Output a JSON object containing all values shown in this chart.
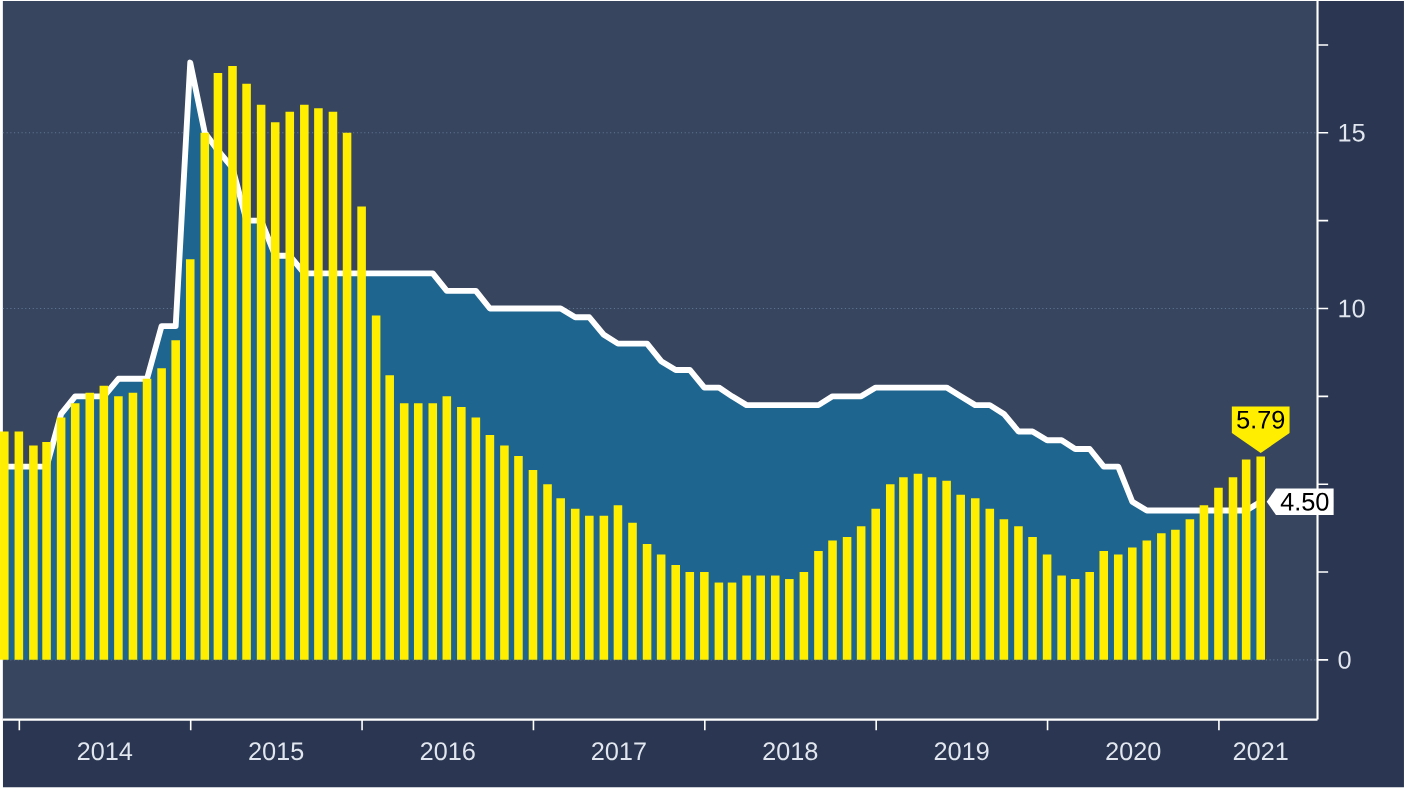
{
  "chart_data": {
    "type": "bar",
    "x": [
      "2013-11-30",
      "2013-12-31",
      "2014-01-31",
      "2014-02-28",
      "2014-03-31",
      "2014-04-30",
      "2014-05-31",
      "2014-06-30",
      "2014-07-31",
      "2014-08-31",
      "2014-09-30",
      "2014-10-31",
      "2014-11-30",
      "2014-12-31",
      "2015-01-31",
      "2015-02-28",
      "2015-03-31",
      "2015-04-30",
      "2015-05-31",
      "2015-06-30",
      "2015-07-31",
      "2015-08-31",
      "2015-09-30",
      "2015-10-31",
      "2015-11-30",
      "2015-12-31",
      "2016-01-31",
      "2016-02-29",
      "2016-03-31",
      "2016-04-30",
      "2016-05-31",
      "2016-06-30",
      "2016-07-31",
      "2016-08-31",
      "2016-09-30",
      "2016-10-31",
      "2016-11-30",
      "2016-12-31",
      "2017-01-31",
      "2017-02-28",
      "2017-03-31",
      "2017-04-30",
      "2017-05-31",
      "2017-06-30",
      "2017-07-31",
      "2017-08-31",
      "2017-09-30",
      "2017-10-31",
      "2017-11-30",
      "2017-12-31",
      "2018-01-31",
      "2018-02-28",
      "2018-03-31",
      "2018-04-30",
      "2018-05-31",
      "2018-06-30",
      "2018-07-31",
      "2018-08-31",
      "2018-09-30",
      "2018-10-31",
      "2018-11-30",
      "2018-12-31",
      "2019-01-31",
      "2019-02-28",
      "2019-03-31",
      "2019-04-30",
      "2019-05-31",
      "2019-06-30",
      "2019-07-31",
      "2019-08-31",
      "2019-09-30",
      "2019-10-31",
      "2019-11-30",
      "2019-12-31",
      "2020-01-31",
      "2020-02-29",
      "2020-03-31",
      "2020-04-30",
      "2020-05-31",
      "2020-06-30",
      "2020-07-31",
      "2020-08-31",
      "2020-09-30",
      "2020-10-31",
      "2020-11-30",
      "2020-12-31",
      "2021-01-31",
      "2021-02-28",
      "2021-03-31"
    ],
    "series": [
      {
        "type": "area",
        "color": "#1e6690",
        "values": [
          5.5,
          5.5,
          5.5,
          5.5,
          7.0,
          7.5,
          7.5,
          7.5,
          8.0,
          8.0,
          8.0,
          9.5,
          9.5,
          17.0,
          15.0,
          14.5,
          14.0,
          12.5,
          12.5,
          11.5,
          11.5,
          11.0,
          11.0,
          11.0,
          11.0,
          11.0,
          11.0,
          11.0,
          11.0,
          11.0,
          11.0,
          10.5,
          10.5,
          10.5,
          10.0,
          10.0,
          10.0,
          10.0,
          10.0,
          10.0,
          9.75,
          9.75,
          9.25,
          9.0,
          9.0,
          9.0,
          8.5,
          8.25,
          8.25,
          7.75,
          7.75,
          7.5,
          7.25,
          7.25,
          7.25,
          7.25,
          7.25,
          7.25,
          7.5,
          7.5,
          7.5,
          7.75,
          7.75,
          7.75,
          7.75,
          7.75,
          7.75,
          7.5,
          7.25,
          7.25,
          7.0,
          6.5,
          6.5,
          6.25,
          6.25,
          6.0,
          6.0,
          5.5,
          5.5,
          4.5,
          4.25,
          4.25,
          4.25,
          4.25,
          4.25,
          4.25,
          4.25,
          4.25,
          4.5
        ],
        "value_labels": [
          null,
          null,
          null,
          null,
          null,
          null,
          null,
          null,
          null,
          null,
          null,
          null,
          null,
          null,
          null,
          null,
          null,
          null,
          null,
          null,
          null,
          null,
          null,
          null,
          null,
          null,
          null,
          null,
          null,
          null,
          null,
          null,
          null,
          null,
          null,
          null,
          null,
          null,
          null,
          null,
          null,
          null,
          null,
          null,
          null,
          null,
          null,
          null,
          null,
          null,
          null,
          null,
          null,
          null,
          null,
          null,
          null,
          null,
          null,
          null,
          null,
          null,
          null,
          null,
          null,
          null,
          null,
          null,
          null,
          null,
          null,
          null,
          null,
          null,
          null,
          null,
          null,
          null,
          null,
          null,
          null,
          null,
          null,
          null,
          null,
          null,
          null,
          null,
          "4.50"
        ]
      },
      {
        "color": "#ffee00",
        "values": [
          6.5,
          6.5,
          6.1,
          6.2,
          6.9,
          7.3,
          7.6,
          7.8,
          7.5,
          7.6,
          8.0,
          8.3,
          9.1,
          11.4,
          15.0,
          16.7,
          16.9,
          16.4,
          15.8,
          15.3,
          15.6,
          15.8,
          15.7,
          15.6,
          15.0,
          12.9,
          9.8,
          8.1,
          7.3,
          7.3,
          7.3,
          7.5,
          7.2,
          6.9,
          6.4,
          6.1,
          5.8,
          5.4,
          5.0,
          4.6,
          4.3,
          4.1,
          4.1,
          4.4,
          3.9,
          3.3,
          3.0,
          2.7,
          2.5,
          2.5,
          2.2,
          2.2,
          2.4,
          2.4,
          2.4,
          2.3,
          2.5,
          3.1,
          3.4,
          3.5,
          3.8,
          4.3,
          5.0,
          5.2,
          5.3,
          5.2,
          5.1,
          4.7,
          4.6,
          4.3,
          4.0,
          3.8,
          3.5,
          3.0,
          2.4,
          2.3,
          2.5,
          3.1,
          3.0,
          3.2,
          3.4,
          3.6,
          3.7,
          4.0,
          4.4,
          4.9,
          5.2,
          5.7,
          5.79
        ],
        "value_labels": [
          null,
          null,
          null,
          null,
          null,
          null,
          null,
          null,
          null,
          null,
          null,
          null,
          null,
          null,
          null,
          null,
          null,
          null,
          null,
          null,
          null,
          null,
          null,
          null,
          null,
          null,
          null,
          null,
          null,
          null,
          null,
          null,
          null,
          null,
          null,
          null,
          null,
          null,
          null,
          null,
          null,
          null,
          null,
          null,
          null,
          null,
          null,
          null,
          null,
          null,
          null,
          null,
          null,
          null,
          null,
          null,
          null,
          null,
          null,
          null,
          null,
          null,
          null,
          null,
          null,
          null,
          null,
          null,
          null,
          null,
          null,
          null,
          null,
          null,
          null,
          null,
          null,
          null,
          null,
          null,
          null,
          null,
          null,
          null,
          null,
          null,
          null,
          null,
          "5.79"
        ]
      }
    ],
    "xlim": [
      "2013-11-27",
      "2021-07-30"
    ],
    "xticks": [
      {
        "value": "2014-01-01",
        "label": null
      },
      {
        "value": "2015-01-01",
        "label": null
      },
      {
        "value": "2016-01-01",
        "label": null
      },
      {
        "value": "2017-01-01",
        "label": null
      },
      {
        "value": "2018-01-01",
        "label": null
      },
      {
        "value": "2019-01-01",
        "label": null
      },
      {
        "value": "2020-01-01",
        "label": null
      },
      {
        "value": "2021-01-01",
        "label": null
      },
      {
        "value": "2014-07-02",
        "label": "2014"
      },
      {
        "value": "2015-07-02",
        "label": "2015"
      },
      {
        "value": "2016-07-02",
        "label": "2016"
      },
      {
        "value": "2017-07-02",
        "label": "2017"
      },
      {
        "value": "2018-07-02",
        "label": "2018"
      },
      {
        "value": "2019-07-02",
        "label": "2019"
      },
      {
        "value": "2020-07-02",
        "label": "2020"
      },
      {
        "value": "2021-03-31",
        "label": "2021"
      }
    ],
    "ylim": [
      -1.7,
      18.75
    ],
    "yticks": [
      0,
      {
        "value": 2.5,
        "label": null
      },
      {
        "value": 5,
        "label": null
      },
      {
        "value": 7.5,
        "label": null
      },
      10,
      {
        "value": 12.5,
        "label": null
      },
      15,
      {
        "value": 17.5,
        "label": null
      }
    ],
    "grid": "y"
  }
}
